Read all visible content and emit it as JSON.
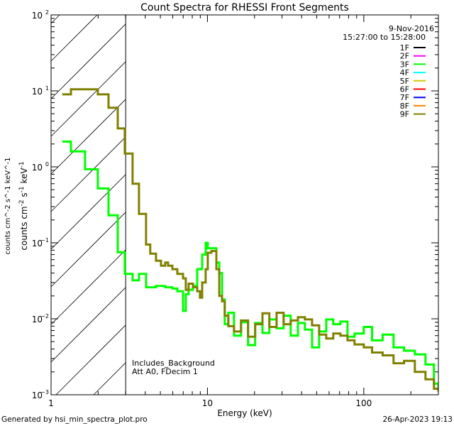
{
  "chart_data": {
    "type": "line",
    "title": "Count Spectra for RHESSI Front Segments",
    "xlabel": "Energy (keV)",
    "ylabel": "counts cm^-2 s^-1 keV^-1",
    "ylabel_parts": {
      "a": "counts cm",
      "b": "-2",
      "c": " s",
      "d": "-1",
      "e": " keV",
      "f": "-1"
    },
    "xscale": "log",
    "yscale": "log",
    "xlim": [
      1,
      300
    ],
    "ylim": [
      0.001,
      100
    ],
    "x_ticks": [
      {
        "value": 1,
        "label": "1"
      },
      {
        "value": 10,
        "label": "10"
      },
      {
        "value": 100,
        "label": "100"
      }
    ],
    "y_ticks": [
      {
        "value": 100,
        "base": "10",
        "exp": "2"
      },
      {
        "value": 10,
        "base": "10",
        "exp": "1"
      },
      {
        "value": 1,
        "base": "10",
        "exp": "0"
      },
      {
        "value": 0.1,
        "base": "10",
        "exp": "−1"
      },
      {
        "value": 0.01,
        "base": "10",
        "exp": "−2"
      },
      {
        "value": 0.001,
        "base": "10",
        "exp": "−3"
      }
    ],
    "hatched_region_keV": [
      1,
      3
    ],
    "date": "9-Nov-2016",
    "time_range": "15:27:00 to 15:28:00",
    "legend_position": "top-right",
    "legend": [
      {
        "name": "1F",
        "color": "#000000"
      },
      {
        "name": "2F",
        "color": "#ff00ff"
      },
      {
        "name": "3F",
        "color": "#00ff00"
      },
      {
        "name": "4F",
        "color": "#00ffff"
      },
      {
        "name": "5F",
        "color": "#d4c800"
      },
      {
        "name": "6F",
        "color": "#ff0000"
      },
      {
        "name": "7F",
        "color": "#0000ff"
      },
      {
        "name": "8F",
        "color": "#ff8000"
      },
      {
        "name": "9F",
        "color": "#808000"
      }
    ],
    "annotations": [
      "Includes_Background",
      "Att A0, FDecim 1"
    ],
    "series": [
      {
        "name": "3F",
        "color": "#00ff00",
        "x": [
          1.18,
          1.34,
          1.65,
          1.99,
          2.33,
          2.67,
          2.96,
          3.32,
          3.65,
          4.05,
          4.69,
          5.37,
          5.97,
          6.42,
          6.98,
          7.27,
          7.58,
          8.08,
          8.6,
          9.25,
          9.74,
          10.05,
          10.6,
          11.4,
          11.9,
          12.4,
          12.9,
          13.6,
          14.8,
          16.4,
          18.2,
          20.2,
          22.5,
          24.9,
          27.7,
          30.7,
          34.1,
          37.9,
          42.0,
          46.7,
          51.8,
          57.5,
          63.8,
          70.8,
          78.7,
          87.3,
          100,
          113,
          132,
          155,
          181,
          212,
          248,
          281,
          300
        ],
        "y": [
          2.15,
          1.6,
          0.93,
          0.52,
          0.23,
          0.075,
          0.039,
          0.032,
          0.039,
          0.026,
          0.027,
          0.026,
          0.025,
          0.023,
          0.0127,
          0.021,
          0.024,
          0.027,
          0.045,
          0.07,
          0.1,
          0.085,
          0.085,
          0.055,
          0.04,
          0.018,
          0.0085,
          0.012,
          0.006,
          0.009,
          0.0045,
          0.0088,
          0.0065,
          0.0098,
          0.0075,
          0.011,
          0.006,
          0.0088,
          0.0072,
          0.0042,
          0.0068,
          0.0098,
          0.0085,
          0.0092,
          0.0058,
          0.0064,
          0.0078,
          0.0052,
          0.0062,
          0.0042,
          0.0038,
          0.0034,
          0.0025,
          0.0014,
          0.0012
        ]
      },
      {
        "name": "9F",
        "color": "#808000",
        "x": [
          1.18,
          1.34,
          1.99,
          2.33,
          2.67,
          2.96,
          3.32,
          3.65,
          4.05,
          4.31,
          4.69,
          5.05,
          5.37,
          5.6,
          5.97,
          6.42,
          6.98,
          7.27,
          7.58,
          8.08,
          8.6,
          8.96,
          9.25,
          9.74,
          10.05,
          10.6,
          11.4,
          11.9,
          12.4,
          12.9,
          13.6,
          14.8,
          16.4,
          18.2,
          20.2,
          22.5,
          24.9,
          27.7,
          30.7,
          34.1,
          37.9,
          42.0,
          46.7,
          51.8,
          57.5,
          63.8,
          70.8,
          78.7,
          87.3,
          100,
          113,
          132,
          155,
          181,
          212,
          248,
          281,
          300
        ],
        "y": [
          9.0,
          10.5,
          9.0,
          6.0,
          3.2,
          1.5,
          0.6,
          0.24,
          0.095,
          0.072,
          0.058,
          0.05,
          0.055,
          0.05,
          0.045,
          0.039,
          0.034,
          0.024,
          0.029,
          0.026,
          0.023,
          0.019,
          0.03,
          0.045,
          0.074,
          0.078,
          0.045,
          0.02,
          0.017,
          0.011,
          0.008,
          0.0068,
          0.0095,
          0.0058,
          0.0085,
          0.0118,
          0.0078,
          0.012,
          0.0085,
          0.0095,
          0.0105,
          0.0098,
          0.0082,
          0.0062,
          0.0055,
          0.0064,
          0.006,
          0.0052,
          0.0046,
          0.0042,
          0.0036,
          0.0033,
          0.0026,
          0.0028,
          0.002,
          0.0016,
          0.0012,
          0.0011
        ]
      }
    ]
  },
  "footer": {
    "generated_by": "Generated by hsi_min_spectra_plot.pro",
    "timestamp": "26-Apr-2023 19:13"
  }
}
